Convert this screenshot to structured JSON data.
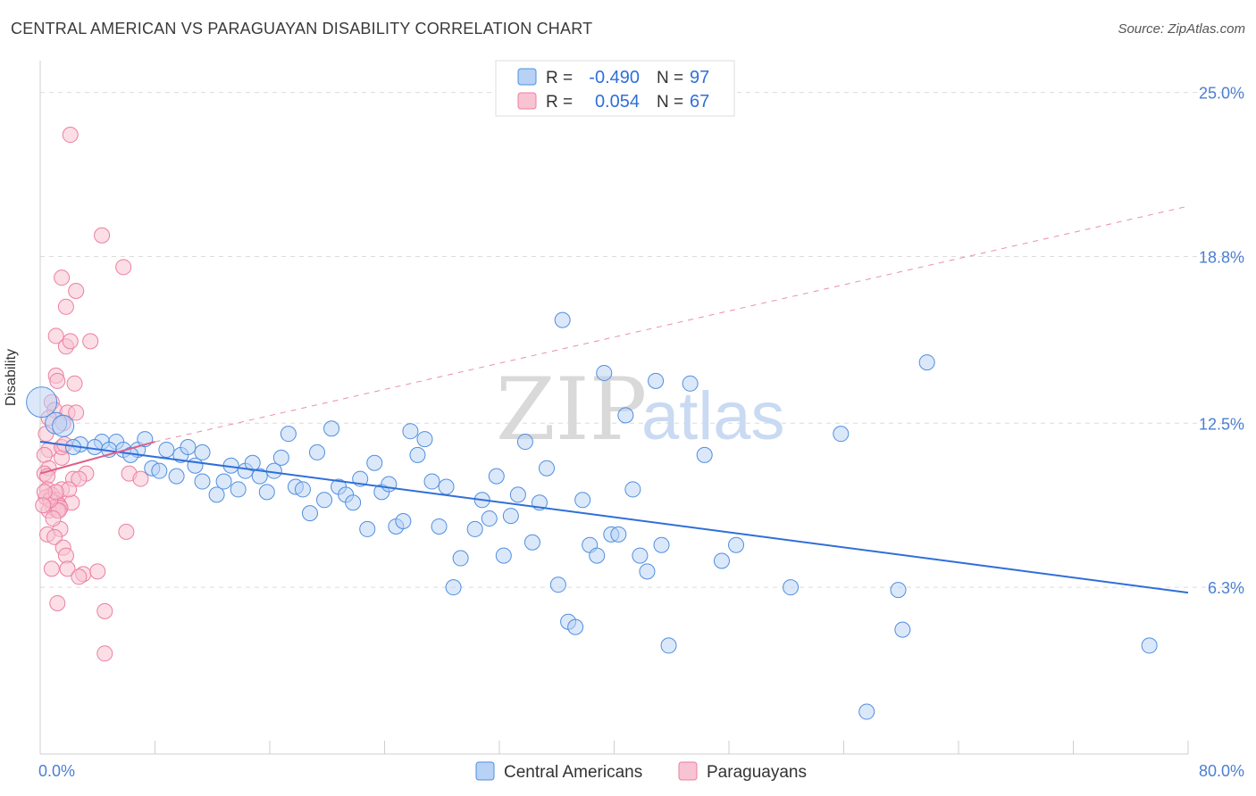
{
  "title": "CENTRAL AMERICAN VS PARAGUAYAN DISABILITY CORRELATION CHART",
  "source": "Source: ZipAtlas.com",
  "watermark": {
    "zip": "ZIP",
    "atlas": "atlas"
  },
  "colors": {
    "blue": "#4f8fe0",
    "blue_fill": "#b7d2f5",
    "blue_line": "#2f6fd8",
    "pink": "#ec7fa0",
    "pink_fill": "#f8c3d2",
    "pink_line": "#e0608a",
    "axis_text": "#4a7fd4"
  },
  "legend": {
    "rows": [
      {
        "r_label": "R =",
        "r_value": "-0.490",
        "n_label": "N =",
        "n_value": "97"
      },
      {
        "r_label": "R =",
        "r_value": "0.054",
        "n_label": "N =",
        "n_value": "67"
      }
    ],
    "bottom": [
      "Central Americans",
      "Paraguayans"
    ]
  },
  "chart_data": {
    "type": "scatter",
    "ylabel": "Disability",
    "x_ticks": [
      "0.0%",
      "80.0%"
    ],
    "y_ticks": [
      "25.0%",
      "18.8%",
      "12.5%",
      "6.3%"
    ],
    "xlim": [
      0,
      80
    ],
    "ylim": [
      0,
      26.2
    ],
    "series": [
      {
        "name": "Central Americans",
        "trend": [
          [
            0,
            11.8
          ],
          [
            80,
            6.1
          ]
        ],
        "points": [
          [
            0.1,
            13.3
          ],
          [
            1.1,
            12.5
          ],
          [
            1.6,
            12.4
          ],
          [
            2.8,
            11.7
          ],
          [
            2.3,
            11.6
          ],
          [
            4.3,
            11.8
          ],
          [
            3.8,
            11.6
          ],
          [
            5.3,
            11.8
          ],
          [
            4.8,
            11.5
          ],
          [
            5.8,
            11.5
          ],
          [
            6.8,
            11.5
          ],
          [
            7.3,
            11.9
          ],
          [
            8.8,
            11.5
          ],
          [
            6.3,
            11.3
          ],
          [
            9.8,
            11.3
          ],
          [
            10.3,
            11.6
          ],
          [
            11.3,
            11.4
          ],
          [
            7.8,
            10.8
          ],
          [
            8.3,
            10.7
          ],
          [
            9.5,
            10.5
          ],
          [
            10.8,
            10.9
          ],
          [
            11.3,
            10.3
          ],
          [
            12.3,
            9.8
          ],
          [
            12.8,
            10.3
          ],
          [
            13.3,
            10.9
          ],
          [
            13.8,
            10.0
          ],
          [
            14.3,
            10.7
          ],
          [
            14.8,
            11.0
          ],
          [
            15.3,
            10.5
          ],
          [
            15.8,
            9.9
          ],
          [
            16.3,
            10.7
          ],
          [
            16.8,
            11.2
          ],
          [
            17.3,
            12.1
          ],
          [
            17.8,
            10.1
          ],
          [
            18.3,
            10.0
          ],
          [
            18.8,
            9.1
          ],
          [
            19.3,
            11.4
          ],
          [
            19.8,
            9.6
          ],
          [
            20.3,
            12.3
          ],
          [
            20.8,
            10.1
          ],
          [
            21.3,
            9.8
          ],
          [
            21.8,
            9.5
          ],
          [
            22.3,
            10.4
          ],
          [
            22.8,
            8.5
          ],
          [
            23.3,
            11.0
          ],
          [
            23.8,
            9.9
          ],
          [
            24.3,
            10.2
          ],
          [
            24.8,
            8.6
          ],
          [
            25.3,
            8.8
          ],
          [
            25.8,
            12.2
          ],
          [
            26.3,
            11.3
          ],
          [
            26.8,
            11.9
          ],
          [
            27.3,
            10.3
          ],
          [
            27.8,
            8.6
          ],
          [
            28.3,
            10.1
          ],
          [
            29.3,
            7.4
          ],
          [
            28.8,
            6.3
          ],
          [
            30.3,
            8.5
          ],
          [
            30.8,
            9.6
          ],
          [
            31.3,
            8.9
          ],
          [
            31.8,
            10.5
          ],
          [
            32.3,
            7.5
          ],
          [
            32.8,
            9.0
          ],
          [
            33.3,
            9.8
          ],
          [
            33.8,
            11.8
          ],
          [
            34.3,
            8.0
          ],
          [
            34.8,
            9.5
          ],
          [
            35.3,
            10.8
          ],
          [
            36.1,
            6.4
          ],
          [
            36.4,
            16.4
          ],
          [
            36.8,
            5.0
          ],
          [
            37.3,
            4.8
          ],
          [
            37.8,
            9.6
          ],
          [
            38.3,
            7.9
          ],
          [
            38.8,
            7.5
          ],
          [
            39.3,
            14.4
          ],
          [
            39.8,
            8.3
          ],
          [
            40.3,
            8.3
          ],
          [
            40.8,
            12.8
          ],
          [
            41.3,
            10.0
          ],
          [
            41.8,
            7.5
          ],
          [
            42.3,
            6.9
          ],
          [
            42.9,
            14.1
          ],
          [
            43.3,
            7.9
          ],
          [
            43.8,
            4.1
          ],
          [
            45.3,
            14.0
          ],
          [
            46.3,
            11.3
          ],
          [
            47.5,
            7.3
          ],
          [
            48.5,
            7.9
          ],
          [
            52.3,
            6.3
          ],
          [
            55.8,
            12.1
          ],
          [
            59.8,
            6.2
          ],
          [
            60.1,
            4.7
          ],
          [
            61.8,
            14.8
          ],
          [
            57.6,
            1.6
          ],
          [
            77.3,
            4.1
          ]
        ]
      },
      {
        "name": "Paraguayans",
        "trend": [
          [
            0,
            10.6
          ],
          [
            8,
            11.8
          ]
        ],
        "points": [
          [
            2.1,
            23.4
          ],
          [
            4.3,
            19.6
          ],
          [
            5.8,
            18.4
          ],
          [
            1.5,
            18.0
          ],
          [
            2.5,
            17.5
          ],
          [
            1.8,
            16.9
          ],
          [
            1.1,
            15.8
          ],
          [
            1.8,
            15.4
          ],
          [
            2.1,
            15.6
          ],
          [
            3.5,
            15.6
          ],
          [
            1.1,
            14.3
          ],
          [
            1.2,
            14.1
          ],
          [
            2.4,
            14.0
          ],
          [
            0.8,
            13.3
          ],
          [
            1.0,
            13.0
          ],
          [
            1.9,
            12.9
          ],
          [
            2.5,
            12.9
          ],
          [
            0.4,
            12.1
          ],
          [
            0.6,
            11.5
          ],
          [
            0.3,
            11.3
          ],
          [
            1.5,
            11.2
          ],
          [
            0.6,
            10.8
          ],
          [
            0.3,
            10.6
          ],
          [
            0.5,
            10.5
          ],
          [
            3.2,
            10.6
          ],
          [
            2.3,
            10.4
          ],
          [
            2.7,
            10.4
          ],
          [
            0.5,
            10.0
          ],
          [
            1.5,
            10.0
          ],
          [
            0.8,
            9.8
          ],
          [
            0.4,
            9.7
          ],
          [
            0.7,
            9.6
          ],
          [
            1.1,
            9.6
          ],
          [
            2.2,
            9.5
          ],
          [
            1.0,
            9.5
          ],
          [
            1.3,
            9.4
          ],
          [
            0.9,
            9.3
          ],
          [
            1.4,
            9.3
          ],
          [
            0.6,
            9.2
          ],
          [
            1.2,
            9.2
          ],
          [
            1.3,
            9.2
          ],
          [
            0.7,
            9.6
          ],
          [
            1.4,
            8.5
          ],
          [
            0.5,
            8.3
          ],
          [
            1.0,
            8.2
          ],
          [
            6.0,
            8.4
          ],
          [
            1.6,
            7.8
          ],
          [
            1.8,
            7.5
          ],
          [
            0.8,
            7.0
          ],
          [
            1.9,
            7.0
          ],
          [
            3.0,
            6.8
          ],
          [
            2.7,
            6.7
          ],
          [
            4.0,
            6.9
          ],
          [
            1.2,
            5.7
          ],
          [
            4.5,
            5.4
          ],
          [
            4.5,
            3.8
          ],
          [
            1.5,
            11.6
          ],
          [
            1.7,
            11.7
          ],
          [
            6.2,
            10.6
          ],
          [
            7.0,
            10.4
          ],
          [
            2.0,
            10.0
          ],
          [
            1.1,
            9.9
          ],
          [
            0.3,
            9.9
          ],
          [
            0.2,
            9.4
          ],
          [
            0.9,
            8.9
          ],
          [
            1.6,
            12.5
          ],
          [
            0.6,
            12.7
          ]
        ]
      }
    ]
  }
}
